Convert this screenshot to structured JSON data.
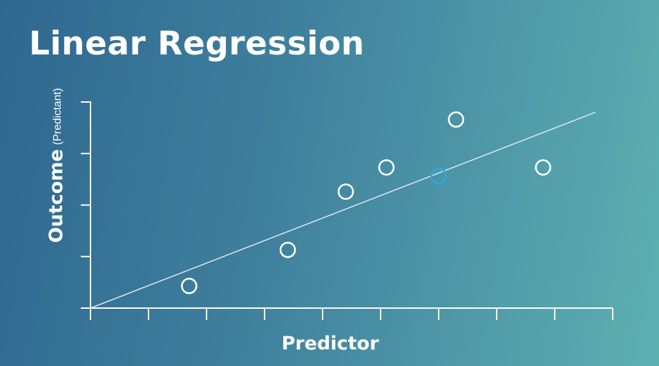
{
  "title": "Linear Regression",
  "chart_data": {
    "type": "scatter",
    "title": "Linear Regression",
    "xlabel": "Predictor",
    "ylabel": "Outcome",
    "ylabel_note": "(Predictant)",
    "xlim": [
      0,
      9
    ],
    "ylim": [
      0,
      4
    ],
    "x_ticks": [
      0,
      1,
      2,
      3,
      4,
      5,
      6,
      7,
      8,
      9
    ],
    "y_ticks": [
      0,
      1,
      2,
      3,
      4
    ],
    "grid": false,
    "points": [
      {
        "x": 1.7,
        "y": 0.43,
        "highlighted": false
      },
      {
        "x": 3.4,
        "y": 1.13,
        "highlighted": false
      },
      {
        "x": 4.4,
        "y": 2.26,
        "highlighted": false
      },
      {
        "x": 5.1,
        "y": 2.73,
        "highlighted": false
      },
      {
        "x": 6.0,
        "y": 2.56,
        "highlighted": true
      },
      {
        "x": 6.3,
        "y": 3.66,
        "highlighted": false
      },
      {
        "x": 7.8,
        "y": 2.73,
        "highlighted": false
      }
    ],
    "regression_line": {
      "x": [
        0,
        8.7
      ],
      "y": [
        0,
        3.8
      ]
    }
  },
  "colors": {
    "point": "#ffffff",
    "point_highlight": "#2aaae6",
    "axis": "#ffffff",
    "regression_line": "#dfe9ee"
  }
}
